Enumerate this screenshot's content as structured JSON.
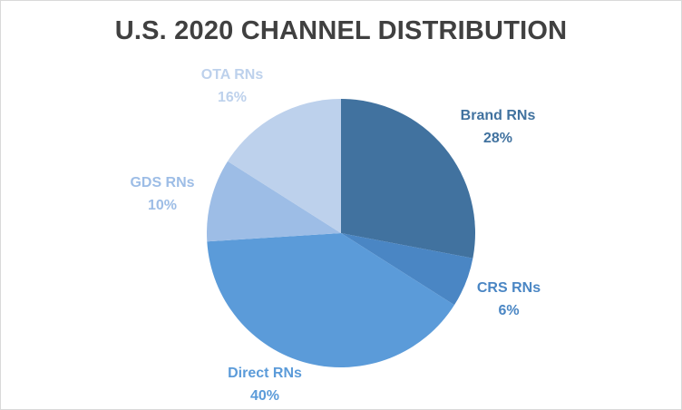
{
  "chart_data": {
    "type": "pie",
    "title": "U.S. 2020 CHANNEL DISTRIBUTION",
    "start_angle_deg": 0,
    "direction": "clockwise",
    "slices": [
      {
        "label": "Brand RNs",
        "value": 28,
        "pct_label": "28%",
        "color": "#41729f",
        "text_color": "#41729f"
      },
      {
        "label": "CRS RNs",
        "value": 6,
        "pct_label": "6%",
        "color": "#4a86c4",
        "text_color": "#4a86c4"
      },
      {
        "label": "Direct RNs",
        "value": 40,
        "pct_label": "40%",
        "color": "#5b9bd9",
        "text_color": "#5b9bd9"
      },
      {
        "label": "GDS RNs",
        "value": 10,
        "pct_label": "10%",
        "color": "#9dbde6",
        "text_color": "#9dbde6"
      },
      {
        "label": "OTA RNs",
        "value": 16,
        "pct_label": "16%",
        "color": "#bdd1ec",
        "text_color": "#bdd1ec"
      }
    ]
  }
}
